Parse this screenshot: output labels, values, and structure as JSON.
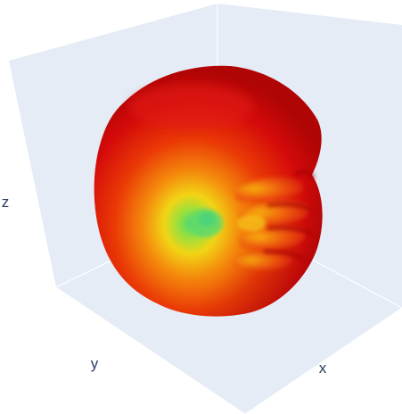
{
  "chart_data": {
    "type": "surface",
    "kind": "3d-isosurface",
    "axes": {
      "x": {
        "label": "x"
      },
      "y": {
        "label": "y"
      },
      "z": {
        "label": "z"
      }
    },
    "scene_background": "#e5ecf6",
    "colorscale": [
      "#d40a0a",
      "#ea3a06",
      "#f48a0c",
      "#f2d416",
      "#9be03c",
      "#52d76f"
    ],
    "grid": false,
    "legend": "none"
  }
}
